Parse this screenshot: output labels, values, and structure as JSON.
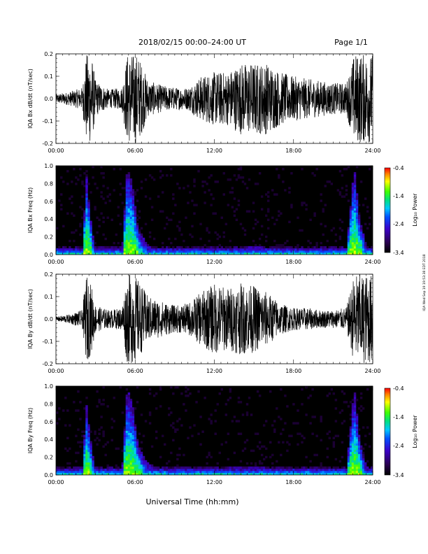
{
  "header": {
    "title": "2018/02/15   00:00–24:00 UT",
    "page": "Page 1/1"
  },
  "xlabel": "Universal Time (hh:mm)",
  "side_stamp": "IQA Wed Sep 19 19:53:38 EDT 2018",
  "colorbar": {
    "label": "Log₁₀ Power",
    "ticks": [
      "-0.4",
      "-1.4",
      "-2.4",
      "-3.4"
    ]
  },
  "colors": {
    "background": "#000000",
    "trace": "#000000",
    "frame": "#000000"
  },
  "chart_data": [
    {
      "type": "line",
      "ylabel": "IQA Bx dB/dt (nT/sec)",
      "x_ticks": [
        "00:00",
        "06:00",
        "12:00",
        "18:00",
        "24:00"
      ],
      "y_ticks": [
        "0.2",
        "0.1",
        "0.0",
        "-0.1",
        "-0.2"
      ],
      "xlim": [
        0,
        24
      ],
      "ylim": [
        -0.2,
        0.2
      ],
      "series": [
        {
          "x": [
            0,
            1,
            2,
            2.3,
            2.7,
            3,
            4,
            5,
            5.4,
            5.8,
            6.2,
            7,
            8,
            9,
            10,
            11,
            12,
            13,
            14,
            15,
            16,
            17,
            18,
            19,
            20,
            21,
            22,
            22.6,
            23,
            23.5,
            24
          ],
          "values": [
            0.02,
            0.03,
            0.05,
            0.2,
            0.2,
            0.08,
            0.04,
            0.05,
            0.2,
            0.2,
            0.2,
            0.08,
            0.06,
            0.05,
            0.05,
            0.1,
            0.12,
            0.12,
            0.16,
            0.16,
            0.16,
            0.12,
            0.1,
            0.09,
            0.08,
            0.07,
            0.07,
            0.2,
            0.2,
            0.2,
            0.2
          ]
        }
      ]
    },
    {
      "type": "heatmap",
      "ylabel": "IQA Bx Freq (Hz)",
      "x_ticks": [
        "00:00",
        "06:00",
        "12:00",
        "18:00",
        "24:00"
      ],
      "y_ticks": [
        "1.0",
        "0.8",
        "0.6",
        "0.4",
        "0.2",
        "0.0"
      ],
      "xlim": [
        0,
        24
      ],
      "ylim": [
        0,
        1.0
      ],
      "zlim": [
        -3.4,
        -0.4
      ],
      "zlabel": "Log₁₀ Power",
      "x": [
        0,
        1,
        2,
        2.3,
        2.7,
        3,
        4,
        5,
        5.4,
        5.8,
        6.2,
        7,
        8,
        9,
        10,
        11,
        12,
        13,
        14,
        15,
        16,
        17,
        18,
        19,
        20,
        21,
        22,
        22.6,
        23,
        23.5,
        24
      ],
      "band_top_hz": [
        0.02,
        0.02,
        0.03,
        0.9,
        0.3,
        0.05,
        0.03,
        0.04,
        1.0,
        0.8,
        0.3,
        0.1,
        0.06,
        0.05,
        0.05,
        0.06,
        0.06,
        0.07,
        0.08,
        0.1,
        0.08,
        0.06,
        0.05,
        0.05,
        0.05,
        0.05,
        0.05,
        1.0,
        0.4,
        0.1,
        0.05
      ]
    },
    {
      "type": "line",
      "ylabel": "IQA By dB/dt (nT/sec)",
      "x_ticks": [
        "00:00",
        "06:00",
        "12:00",
        "18:00",
        "24:00"
      ],
      "y_ticks": [
        "0.2",
        "0.1",
        "0.0",
        "-0.1",
        "-0.2"
      ],
      "xlim": [
        0,
        24
      ],
      "ylim": [
        -0.2,
        0.2
      ],
      "series": [
        {
          "x": [
            0,
            1,
            2,
            2.3,
            2.7,
            3,
            4,
            5,
            5.4,
            5.8,
            6.2,
            7,
            8,
            9,
            10,
            11,
            12,
            13,
            14,
            15,
            16,
            17,
            18,
            19,
            20,
            21,
            22,
            22.6,
            23,
            23.5,
            24
          ],
          "values": [
            0.01,
            0.02,
            0.04,
            0.2,
            0.15,
            0.06,
            0.04,
            0.05,
            0.2,
            0.2,
            0.18,
            0.1,
            0.08,
            0.06,
            0.07,
            0.12,
            0.16,
            0.14,
            0.16,
            0.15,
            0.12,
            0.07,
            0.05,
            0.05,
            0.04,
            0.04,
            0.05,
            0.2,
            0.2,
            0.2,
            0.2
          ]
        }
      ]
    },
    {
      "type": "heatmap",
      "ylabel": "IQA By Freq (Hz)",
      "x_ticks": [
        "00:00",
        "06:00",
        "12:00",
        "18:00",
        "24:00"
      ],
      "y_ticks": [
        "1.0",
        "0.8",
        "0.6",
        "0.4",
        "0.2",
        "0.0"
      ],
      "xlim": [
        0,
        24
      ],
      "ylim": [
        0,
        1.0
      ],
      "zlim": [
        -3.4,
        -0.4
      ],
      "zlabel": "Log₁₀ Power",
      "x": [
        0,
        1,
        2,
        2.3,
        2.7,
        3,
        4,
        5,
        5.4,
        5.8,
        6.2,
        7,
        8,
        9,
        10,
        11,
        12,
        13,
        14,
        15,
        16,
        17,
        18,
        19,
        20,
        21,
        22,
        22.6,
        23,
        23.5,
        24
      ],
      "band_top_hz": [
        0.02,
        0.02,
        0.03,
        0.8,
        0.3,
        0.05,
        0.03,
        0.04,
        1.0,
        0.8,
        0.35,
        0.12,
        0.08,
        0.06,
        0.06,
        0.07,
        0.07,
        0.08,
        0.1,
        0.1,
        0.08,
        0.05,
        0.05,
        0.05,
        0.05,
        0.05,
        0.05,
        1.0,
        0.4,
        0.1,
        0.05
      ]
    }
  ]
}
